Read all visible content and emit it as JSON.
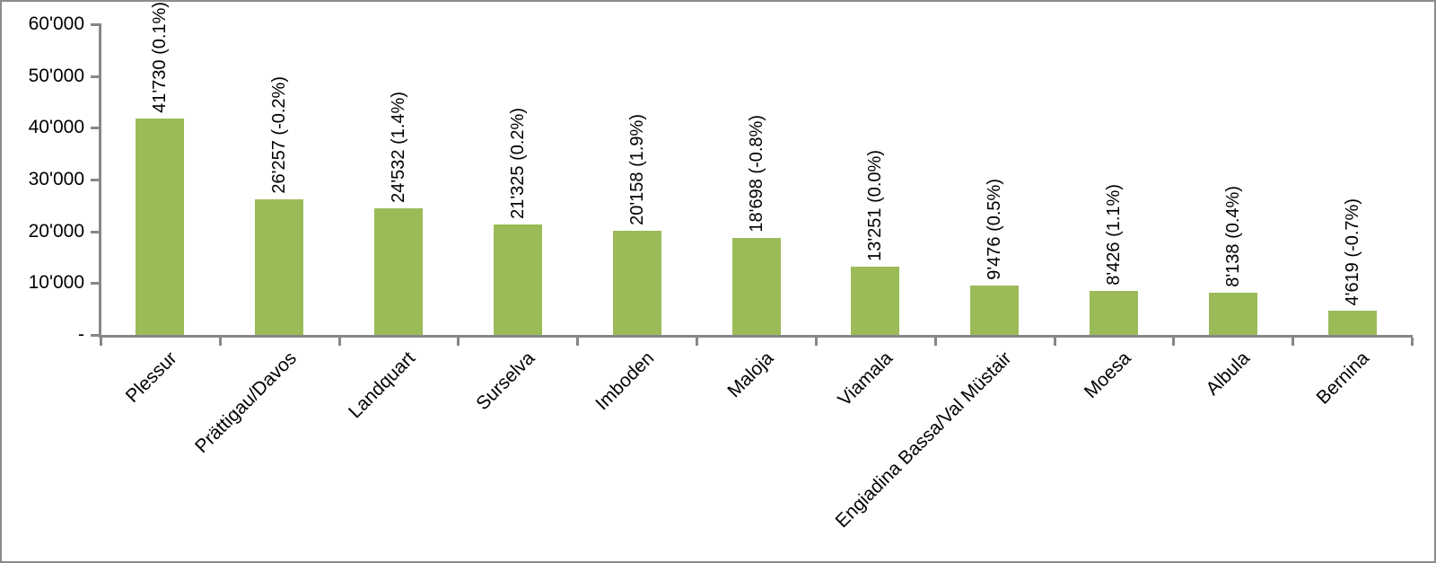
{
  "chart_data": {
    "type": "bar",
    "title": "",
    "xlabel": "",
    "ylabel": "",
    "categories": [
      "Plessur",
      "Prättigau/Davos",
      "Landquart",
      "Surselva",
      "Imboden",
      "Maloja",
      "Viamala",
      "Engiadina Bassa/Val Müstair",
      "Moesa",
      "Albula",
      "Bernina"
    ],
    "values": [
      41730,
      26257,
      24532,
      21325,
      20158,
      18698,
      13251,
      9476,
      8426,
      8138,
      4619
    ],
    "bar_labels": [
      "41'730 (0.1%)",
      "26'257 (-0.2%)",
      "24'532 (1.4%)",
      "21'325 (0.2%)",
      "20'158 (1.9%)",
      "18'698 (-0.8%)",
      "13'251 (0.0%)",
      "9'476 (0.5%)",
      "8'426 (1.1%)",
      "8'138 (0.4%)",
      "4'619 (-0.7%)"
    ],
    "ylim": [
      0,
      60000
    ],
    "ytick_values": [
      0,
      10000,
      20000,
      30000,
      40000,
      50000,
      60000
    ],
    "ytick_labels": [
      "-",
      "10'000",
      "20'000",
      "30'000",
      "40'000",
      "50'000",
      "60'000"
    ],
    "grid": false,
    "legend": "none",
    "bar_color": "#9BBB59",
    "axis_color": "#878787",
    "text_color": "#000000",
    "background_color": "#FFFFFF"
  }
}
